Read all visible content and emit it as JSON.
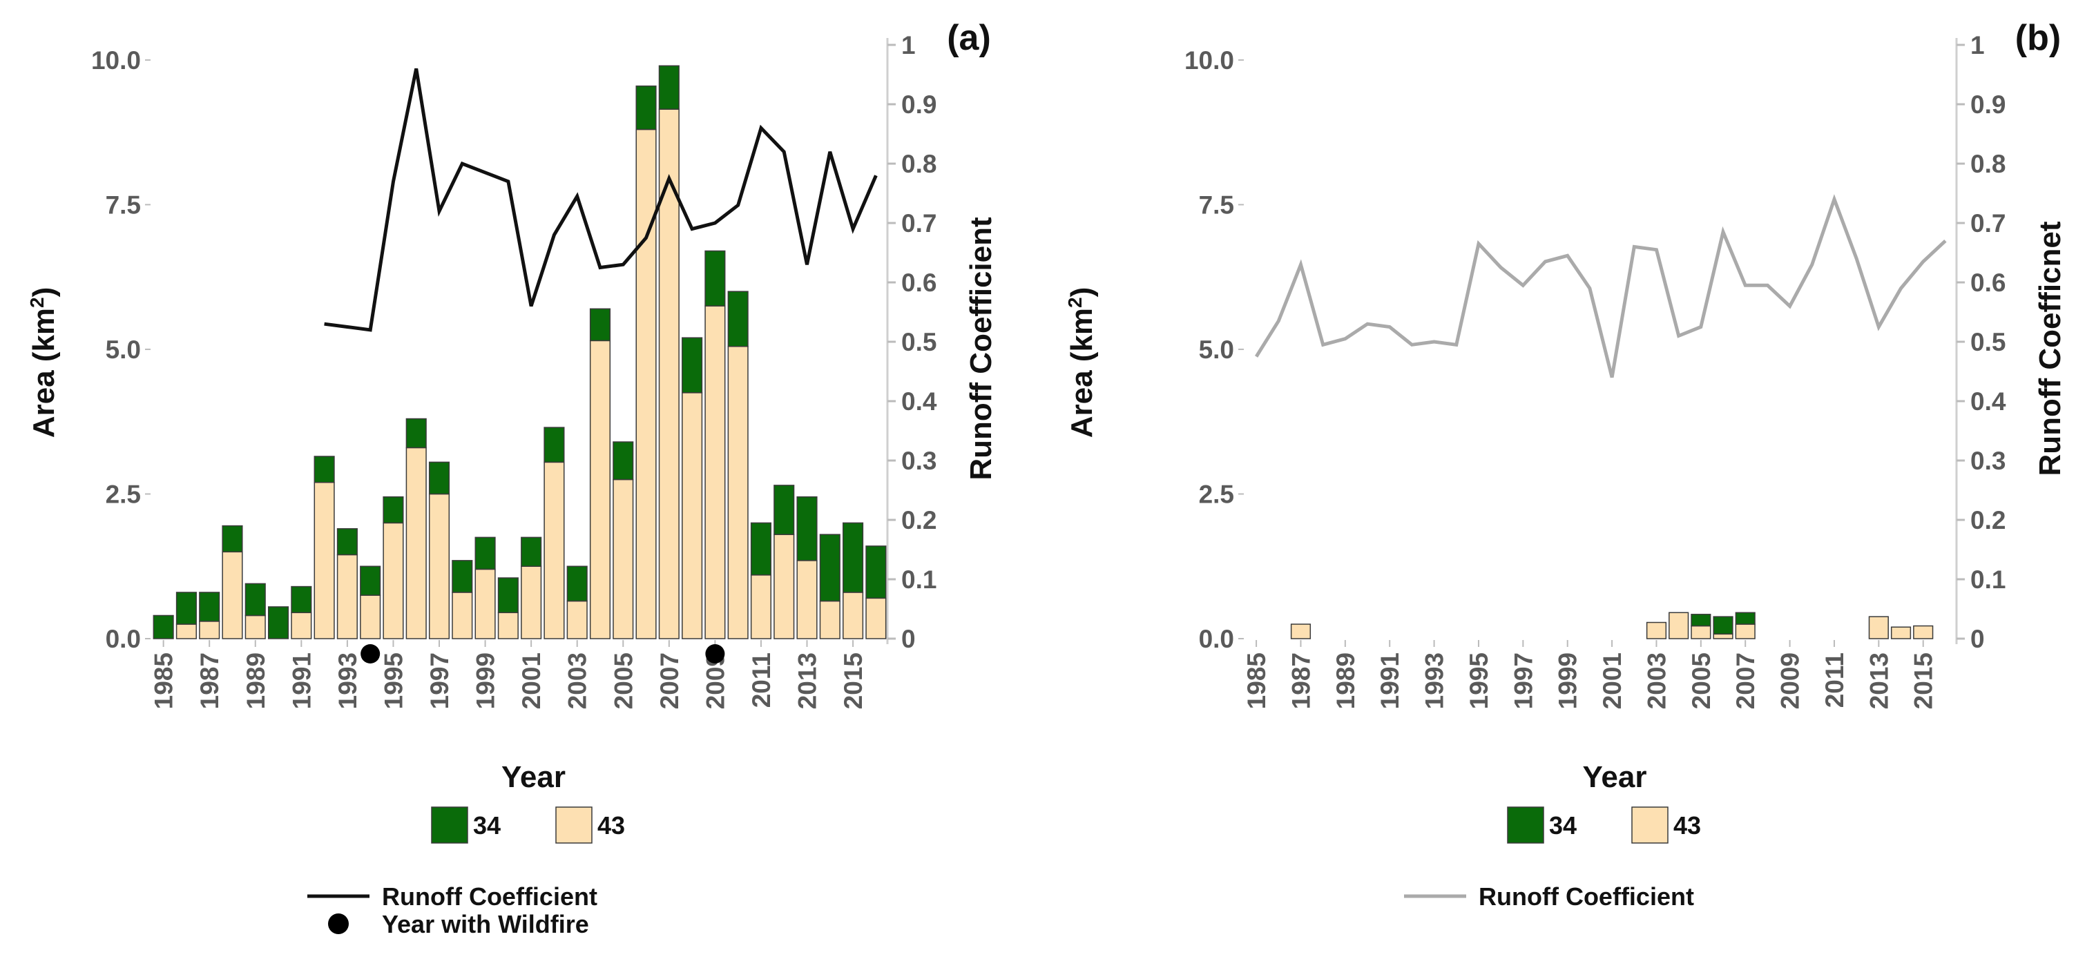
{
  "chart_data": [
    {
      "panel_label": "(a)",
      "type": "bar",
      "stacked": true,
      "overlay": "line",
      "xlabel": "Year",
      "ylabel": "Area (km",
      "ylabel_sup": "2",
      "ylabel_close": ")",
      "y2label": "Runoff Coefficient",
      "ylim": [
        0,
        10.5
      ],
      "y2lim": [
        0,
        1
      ],
      "yticks": [
        "0.0",
        "2.5",
        "5.0",
        "7.5",
        "10.0"
      ],
      "y2ticks": [
        "0",
        "0.1",
        "0.2",
        "0.3",
        "0.4",
        "0.5",
        "0.6",
        "0.7",
        "0.8",
        "0.9",
        "1"
      ],
      "xticks": [
        "1985",
        "1987",
        "1989",
        "1991",
        "1993",
        "1995",
        "1997",
        "1999",
        "2001",
        "2003",
        "2005",
        "2007",
        "2009",
        "2011",
        "2013",
        "2015"
      ],
      "years": [
        1985,
        1986,
        1987,
        1988,
        1989,
        1990,
        1991,
        1992,
        1993,
        1994,
        1995,
        1996,
        1997,
        1998,
        1999,
        2000,
        2001,
        2002,
        2003,
        2004,
        2005,
        2006,
        2007,
        2008,
        2009,
        2010,
        2011,
        2012,
        2013,
        2014,
        2015,
        2016
      ],
      "series": [
        {
          "name": "43",
          "color": "#fde0b2",
          "values": [
            0.0,
            0.25,
            0.3,
            1.5,
            0.4,
            0.0,
            0.45,
            2.7,
            1.45,
            0.75,
            2.0,
            3.3,
            2.5,
            0.8,
            1.2,
            0.45,
            1.25,
            3.05,
            0.65,
            5.15,
            2.75,
            8.8,
            9.15,
            4.25,
            5.75,
            5.05,
            1.1,
            1.8,
            1.35,
            0.65,
            0.8,
            0.7
          ]
        },
        {
          "name": "34",
          "color": "#0a6b0a",
          "values": [
            0.4,
            0.55,
            0.5,
            0.45,
            0.55,
            0.55,
            0.45,
            0.45,
            0.45,
            0.5,
            0.45,
            0.5,
            0.55,
            0.55,
            0.55,
            0.6,
            0.5,
            0.6,
            0.6,
            0.55,
            0.65,
            0.75,
            0.75,
            0.95,
            0.95,
            0.95,
            0.9,
            0.85,
            1.1,
            1.15,
            1.2,
            0.9
          ]
        }
      ],
      "line": {
        "name": "Runoff Coefficient",
        "color": "#111111",
        "years": [
          1992,
          1993,
          1994,
          1995,
          1996,
          1997,
          1998,
          1999,
          2000,
          2001,
          2002,
          2003,
          2004,
          2005,
          2006,
          2007,
          2008,
          2009,
          2010,
          2011,
          2012,
          2013,
          2014,
          2015,
          2016
        ],
        "values": [
          0.53,
          0.525,
          0.52,
          0.77,
          0.96,
          0.72,
          0.8,
          0.785,
          0.77,
          0.56,
          0.68,
          0.745,
          0.625,
          0.63,
          0.675,
          0.775,
          0.69,
          0.7,
          0.73,
          0.86,
          0.82,
          0.63,
          0.82,
          0.69,
          0.78
        ]
      },
      "markers": {
        "name": "Year with Wildfire",
        "years": [
          1994,
          2009
        ]
      },
      "legend": {
        "fill_items": [
          "34",
          "43"
        ],
        "line_label": "Runoff Coefficient",
        "marker_label": "Year with Wildfire"
      }
    },
    {
      "panel_label": "(b)",
      "type": "bar",
      "stacked": true,
      "overlay": "line",
      "xlabel": "Year",
      "ylabel": "Area (km",
      "ylabel_sup": "2",
      "ylabel_close": ")",
      "y2label": "Runoff Coefficnet",
      "ylim": [
        0,
        10.5
      ],
      "y2lim": [
        0,
        1
      ],
      "yticks": [
        "0.0",
        "2.5",
        "5.0",
        "7.5",
        "10.0"
      ],
      "y2ticks": [
        "0",
        "0.1",
        "0.2",
        "0.3",
        "0.4",
        "0.5",
        "0.6",
        "0.7",
        "0.8",
        "0.9",
        "1"
      ],
      "xticks": [
        "1985",
        "1987",
        "1989",
        "1991",
        "1993",
        "1995",
        "1997",
        "1999",
        "2001",
        "2003",
        "2005",
        "2007",
        "2009",
        "2011",
        "2013",
        "2015"
      ],
      "years": [
        1985,
        1986,
        1987,
        1988,
        1989,
        1990,
        1991,
        1992,
        1993,
        1994,
        1995,
        1996,
        1997,
        1998,
        1999,
        2000,
        2001,
        2002,
        2003,
        2004,
        2005,
        2006,
        2007,
        2008,
        2009,
        2010,
        2011,
        2012,
        2013,
        2014,
        2015,
        2016
      ],
      "series": [
        {
          "name": "43",
          "color": "#fde0b2",
          "values": [
            0,
            0,
            0.25,
            0,
            0,
            0,
            0,
            0,
            0,
            0,
            0,
            0,
            0,
            0,
            0,
            0,
            0,
            0,
            0.28,
            0.45,
            0.22,
            0.08,
            0.25,
            0,
            0,
            0,
            0,
            0,
            0.38,
            0.2,
            0.22,
            0
          ]
        },
        {
          "name": "34",
          "color": "#0a6b0a",
          "values": [
            0,
            0,
            0,
            0,
            0,
            0,
            0,
            0,
            0,
            0,
            0,
            0,
            0,
            0,
            0,
            0,
            0,
            0,
            0,
            0,
            0.2,
            0.3,
            0.2,
            0,
            0,
            0,
            0,
            0,
            0,
            0,
            0,
            0
          ]
        }
      ],
      "line": {
        "name": "Runoff Coefficient",
        "color": "#aaaaaa",
        "years": [
          1985,
          1986,
          1987,
          1988,
          1989,
          1990,
          1991,
          1992,
          1993,
          1994,
          1995,
          1996,
          1997,
          1998,
          1999,
          2000,
          2001,
          2002,
          2003,
          2004,
          2005,
          2006,
          2007,
          2008,
          2009,
          2010,
          2011,
          2012,
          2013,
          2014,
          2015,
          2016
        ],
        "values": [
          0.475,
          0.535,
          0.63,
          0.495,
          0.505,
          0.53,
          0.525,
          0.495,
          0.5,
          0.495,
          0.665,
          0.625,
          0.595,
          0.635,
          0.645,
          0.59,
          0.44,
          0.66,
          0.655,
          0.51,
          0.525,
          0.685,
          0.595,
          0.595,
          0.56,
          0.63,
          0.74,
          0.64,
          0.525,
          0.59,
          0.635,
          0.67
        ]
      },
      "legend": {
        "fill_items": [
          "34",
          "43"
        ],
        "line_label": "Runoff Coefficient"
      }
    }
  ]
}
